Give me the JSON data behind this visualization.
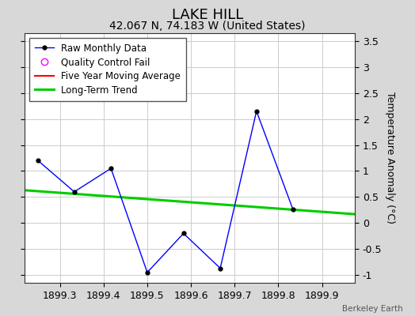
{
  "title": "LAKE HILL",
  "subtitle": "42.067 N, 74.183 W (United States)",
  "ylabel": "Temperature Anomaly (°C)",
  "watermark": "Berkeley Earth",
  "xlim": [
    1899.22,
    1899.975
  ],
  "ylim": [
    -1.15,
    3.65
  ],
  "yticks": [
    -1.0,
    -0.5,
    0.0,
    0.5,
    1.0,
    1.5,
    2.0,
    2.5,
    3.0,
    3.5
  ],
  "xticks": [
    1899.3,
    1899.4,
    1899.5,
    1899.6,
    1899.7,
    1899.8,
    1899.9
  ],
  "raw_x": [
    1899.25,
    1899.333,
    1899.417,
    1899.5,
    1899.583,
    1899.667,
    1899.75,
    1899.833,
    1899.917
  ],
  "raw_y": [
    1.2,
    0.6,
    1.05,
    -0.95,
    -0.2,
    -0.87,
    2.15,
    0.27,
    null
  ],
  "trend_x": [
    1899.22,
    1899.975
  ],
  "trend_y": [
    0.63,
    0.17
  ],
  "raw_color": "#0000ff",
  "trend_color": "#00cc00",
  "moving_avg_color": "#ff0000",
  "qc_color": "#ff00ff",
  "bg_color": "#d8d8d8",
  "plot_bg_color": "#ffffff",
  "grid_color": "#cccccc",
  "title_fontsize": 13,
  "subtitle_fontsize": 10,
  "legend_fontsize": 8.5,
  "tick_fontsize": 9,
  "ylabel_fontsize": 9
}
